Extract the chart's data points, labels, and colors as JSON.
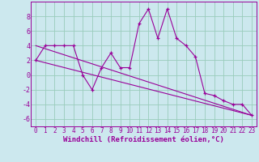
{
  "xlabel": "Windchill (Refroidissement éolien,°C)",
  "background_color": "#cce8ee",
  "line_color": "#990099",
  "grid_color": "#99ccbb",
  "xlim": [
    -0.5,
    23.5
  ],
  "ylim": [
    -7,
    10
  ],
  "xticks": [
    0,
    1,
    2,
    3,
    4,
    5,
    6,
    7,
    8,
    9,
    10,
    11,
    12,
    13,
    14,
    15,
    16,
    17,
    18,
    19,
    20,
    21,
    22,
    23
  ],
  "yticks": [
    -6,
    -4,
    -2,
    0,
    2,
    4,
    6,
    8
  ],
  "series1_x": [
    0,
    1,
    2,
    3,
    4,
    5,
    6,
    7,
    8,
    9,
    10,
    11,
    12,
    13,
    14,
    15,
    16,
    17,
    18,
    19,
    20,
    21,
    22,
    23
  ],
  "series1_y": [
    2.0,
    4.0,
    4.0,
    4.0,
    4.0,
    0.0,
    -2.0,
    1.0,
    3.0,
    1.0,
    1.0,
    7.0,
    9.0,
    5.0,
    9.0,
    5.0,
    4.0,
    2.5,
    -2.5,
    -2.8,
    -3.5,
    -4.0,
    -4.0,
    -5.5
  ],
  "series2_x": [
    0,
    23
  ],
  "series2_y": [
    2.0,
    -5.5
  ],
  "series3_x": [
    0,
    23
  ],
  "series3_y": [
    4.0,
    -5.5
  ],
  "xlabel_fontsize": 6.5,
  "tick_fontsize": 5.5,
  "ytick_fontsize": 6.0
}
